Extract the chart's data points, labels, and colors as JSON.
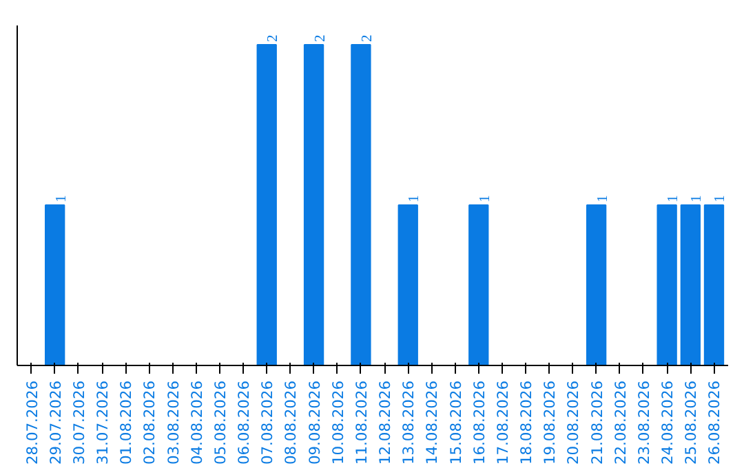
{
  "chart_data": {
    "type": "bar",
    "categories": [
      "28.07.2026",
      "29.07.2026",
      "30.07.2026",
      "31.07.2026",
      "01.08.2026",
      "02.08.2026",
      "03.08.2026",
      "04.08.2026",
      "05.08.2026",
      "06.08.2026",
      "07.08.2026",
      "08.08.2026",
      "09.08.2026",
      "10.08.2026",
      "11.08.2026",
      "12.08.2026",
      "13.08.2026",
      "14.08.2026",
      "15.08.2026",
      "16.08.2026",
      "17.08.2026",
      "18.08.2026",
      "19.08.2026",
      "20.08.2026",
      "21.08.2026",
      "22.08.2026",
      "23.08.2026",
      "24.08.2026",
      "25.08.2026",
      "26.08.2026"
    ],
    "values": [
      0,
      1,
      0,
      0,
      0,
      0,
      0,
      0,
      0,
      0,
      2,
      0,
      2,
      0,
      2,
      0,
      1,
      0,
      0,
      1,
      0,
      0,
      0,
      0,
      1,
      0,
      0,
      1,
      1,
      1
    ],
    "value_labels": [
      null,
      "1",
      null,
      null,
      null,
      null,
      null,
      null,
      null,
      null,
      "2",
      null,
      "2",
      null,
      "2",
      null,
      "1",
      null,
      null,
      "1",
      null,
      null,
      null,
      null,
      "1",
      null,
      null,
      "1",
      "1",
      "1"
    ],
    "color": "#0a7be3",
    "tick_labels": "x",
    "grid": false
  }
}
